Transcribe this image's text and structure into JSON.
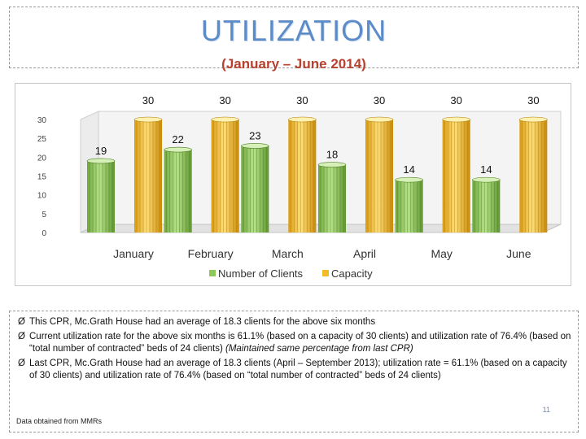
{
  "title": {
    "main": "UTILIZATION",
    "subtitle": "(January – June 2014)"
  },
  "chart_data": {
    "type": "bar",
    "categories": [
      "January",
      "February",
      "March",
      "April",
      "May",
      "June"
    ],
    "series": [
      {
        "name": "Number of Clients",
        "values": [
          19,
          22,
          23,
          18,
          14,
          14
        ],
        "color": "#8ec85a"
      },
      {
        "name": "Capacity",
        "values": [
          30,
          30,
          30,
          30,
          30,
          30
        ],
        "color": "#f2bb28"
      }
    ],
    "ylim": [
      0,
      30
    ],
    "yticks": [
      0,
      5,
      10,
      15,
      20,
      25,
      30
    ],
    "legend": "bottom",
    "style": "3d-cylinder"
  },
  "notes": {
    "bullets": [
      {
        "text": "This CPR, Mc.Grath House had an average of 18.3 clients for the above six months",
        "italic": ""
      },
      {
        "text": "Current utilization rate for the above six months is 61.1% (based on a capacity of 30 clients) and utilization rate of 76.4% (based on “total number of contracted” beds of 24 clients)",
        "italic": "(Maintained same percentage from last CPR)"
      },
      {
        "text": "Last CPR, Mc.Grath House had an average of 18.3 clients (April – September 2013); utilization rate  = 61.1% (based on a capacity of 30 clients) and utilization rate of 76.4% (based on “total number of contracted” beds of 24 clients)",
        "italic": ""
      }
    ],
    "bullet_symbol": "Ø",
    "footnote": "Data obtained from MMRs",
    "page_number": "11"
  }
}
